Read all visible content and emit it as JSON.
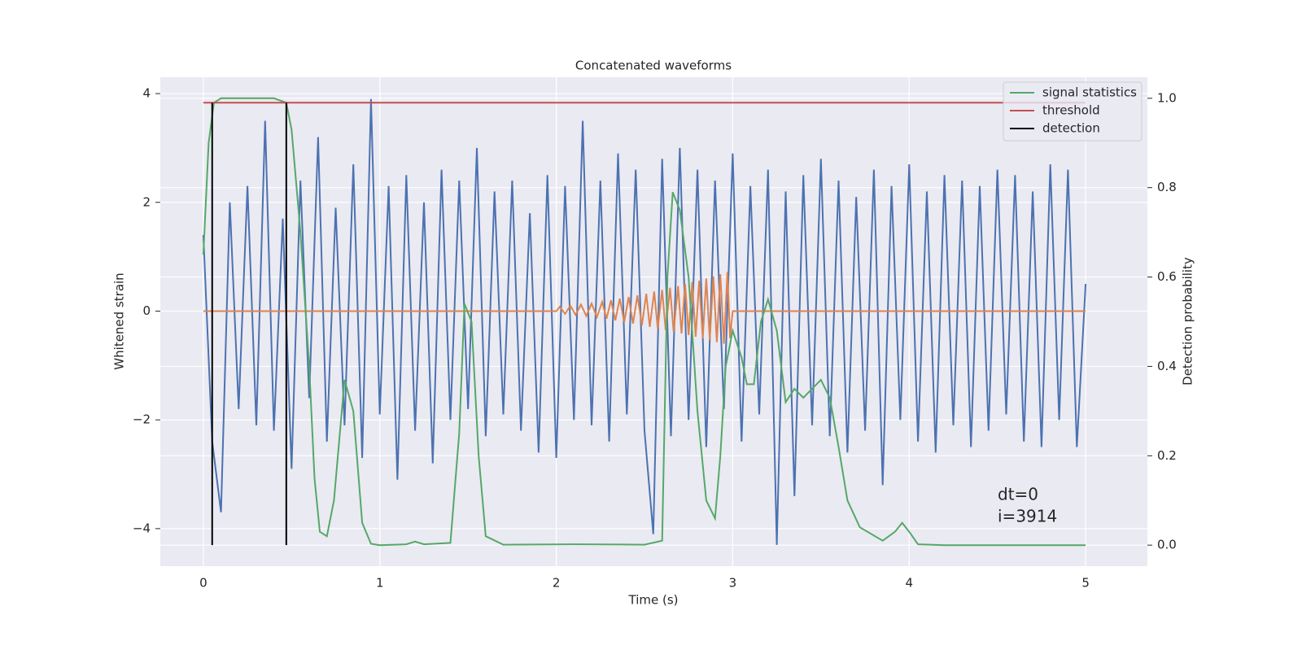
{
  "chart_data": {
    "type": "line",
    "title": "Concatenated waveforms",
    "x_label": "Time (s)",
    "y_label": "Whitened strain",
    "y2_label": "Detection probability",
    "xlim": [
      -0.244,
      5.35
    ],
    "ylim": [
      -4.69,
      4.3
    ],
    "y2lim": [
      -0.047,
      1.047
    ],
    "xticks": [
      0,
      1,
      2,
      3,
      4,
      5
    ],
    "yticks": [
      {
        "value": -4,
        "label": "−4"
      },
      {
        "value": -2,
        "label": "−2"
      },
      0,
      2,
      4
    ],
    "y2ticks": [
      {
        "value": 0,
        "label": "0.0"
      },
      {
        "value": 0.2,
        "label": "0.2"
      },
      {
        "value": 0.4,
        "label": "0.4"
      },
      {
        "value": 0.6,
        "label": "0.6"
      },
      {
        "value": 0.8,
        "label": "0.8"
      },
      {
        "value": 1,
        "label": "1.0"
      }
    ],
    "grid": true,
    "legend": "upper right",
    "annotations": [
      "dt=0",
      "i=3914"
    ],
    "series": [
      {
        "color": "#4c72b0",
        "axis": "y",
        "x": [
          0,
          0.05,
          0.1,
          0.15,
          0.2,
          0.25,
          0.3,
          0.35,
          0.4,
          0.45,
          0.5,
          0.55,
          0.6,
          0.65,
          0.7,
          0.75,
          0.8,
          0.85,
          0.9,
          0.95,
          1,
          1.05,
          1.1,
          1.15,
          1.2,
          1.25,
          1.3,
          1.35,
          1.4,
          1.45,
          1.5,
          1.55,
          1.6,
          1.65,
          1.7,
          1.75,
          1.8,
          1.85,
          1.9,
          1.95,
          2,
          2.05,
          2.1,
          2.15,
          2.2,
          2.25,
          2.3,
          2.35,
          2.4,
          2.45,
          2.5,
          2.55,
          2.6,
          2.65,
          2.7,
          2.75,
          2.8,
          2.85,
          2.9,
          2.95,
          3,
          3.05,
          3.1,
          3.15,
          3.2,
          3.25,
          3.3,
          3.35,
          3.4,
          3.45,
          3.5,
          3.55,
          3.6,
          3.65,
          3.7,
          3.75,
          3.8,
          3.85,
          3.9,
          3.95,
          4,
          4.05,
          4.1,
          4.15,
          4.2,
          4.25,
          4.3,
          4.35,
          4.4,
          4.45,
          4.5,
          4.55,
          4.6,
          4.65,
          4.7,
          4.75,
          4.8,
          4.85,
          4.9,
          4.95,
          5
        ],
        "values": [
          1.4,
          -2.4,
          -3.7,
          2.0,
          -1.8,
          2.3,
          -2.1,
          3.5,
          -2.2,
          1.7,
          -2.9,
          2.4,
          -1.6,
          3.2,
          -2.4,
          1.9,
          -2.1,
          2.7,
          -2.7,
          3.9,
          -1.9,
          2.3,
          -3.1,
          2.5,
          -2.2,
          2.0,
          -2.8,
          2.6,
          -2.0,
          2.4,
          -1.8,
          3.0,
          -2.3,
          2.2,
          -1.9,
          2.4,
          -2.2,
          1.8,
          -2.6,
          2.5,
          -2.7,
          2.3,
          -2.0,
          3.5,
          -2.1,
          2.4,
          -2.4,
          2.9,
          -1.9,
          2.6,
          -2.2,
          -4.1,
          2.8,
          -2.3,
          3.0,
          -2.0,
          2.6,
          -2.5,
          2.4,
          -1.8,
          2.9,
          -2.4,
          2.3,
          -1.9,
          2.6,
          -4.3,
          2.2,
          -3.4,
          2.5,
          -2.1,
          2.8,
          -2.3,
          2.4,
          -2.6,
          2.1,
          -2.2,
          2.6,
          -3.2,
          2.3,
          -2.0,
          2.7,
          -2.4,
          2.2,
          -2.6,
          2.5,
          -2.1,
          2.4,
          -2.5,
          2.3,
          -2.2,
          2.6,
          -1.9,
          2.5,
          -2.4,
          2.2,
          -2.5,
          2.7,
          -2.0,
          2.6,
          -2.5,
          0.5
        ]
      },
      {
        "color": "#dd8452",
        "axis": "y",
        "x": [
          0,
          2,
          2.02,
          2.05,
          2.08,
          2.11,
          2.14,
          2.17,
          2.2,
          2.23,
          2.26,
          2.285,
          2.31,
          2.335,
          2.36,
          2.385,
          2.41,
          2.435,
          2.46,
          2.485,
          2.51,
          2.53,
          2.555,
          2.575,
          2.6,
          2.62,
          2.645,
          2.665,
          2.69,
          2.71,
          2.73,
          2.75,
          2.77,
          2.79,
          2.81,
          2.83,
          2.85,
          2.87,
          2.89,
          2.91,
          2.93,
          2.95,
          2.97,
          2.985,
          3,
          5
        ],
        "values": [
          0,
          0,
          0.08,
          -0.05,
          0.1,
          -0.07,
          0.12,
          -0.09,
          0.14,
          -0.11,
          0.17,
          -0.14,
          0.2,
          -0.17,
          0.23,
          -0.2,
          0.26,
          -0.23,
          0.29,
          -0.26,
          0.32,
          -0.29,
          0.36,
          -0.32,
          0.39,
          -0.35,
          0.43,
          -0.38,
          0.46,
          -0.41,
          0.5,
          -0.44,
          0.53,
          -0.47,
          0.56,
          -0.5,
          0.6,
          -0.53,
          0.64,
          -0.57,
          0.68,
          -0.6,
          0.72,
          -0.5,
          0,
          0
        ]
      },
      {
        "name": "signal statistics",
        "color": "#55a868",
        "axis": "y2",
        "x": [
          0,
          0.03,
          0.06,
          0.1,
          0.4,
          0.47,
          0.5,
          0.55,
          0.6,
          0.63,
          0.66,
          0.7,
          0.74,
          0.8,
          0.85,
          0.9,
          0.95,
          1,
          1.15,
          1.2,
          1.25,
          1.4,
          1.45,
          1.48,
          1.52,
          1.56,
          1.6,
          1.7,
          2.1,
          2.5,
          2.6,
          2.63,
          2.66,
          2.7,
          2.75,
          2.8,
          2.85,
          2.9,
          2.93,
          2.96,
          3,
          3.05,
          3.08,
          3.12,
          3.16,
          3.2,
          3.25,
          3.3,
          3.35,
          3.4,
          3.45,
          3.5,
          3.55,
          3.6,
          3.65,
          3.72,
          3.85,
          3.92,
          3.96,
          4,
          4.05,
          4.2,
          5
        ],
        "values": [
          0.65,
          0.9,
          0.99,
          1,
          1,
          0.99,
          0.93,
          0.7,
          0.4,
          0.15,
          0.03,
          0.02,
          0.1,
          0.37,
          0.3,
          0.05,
          0.003,
          0,
          0.002,
          0.008,
          0.002,
          0.005,
          0.25,
          0.54,
          0.5,
          0.2,
          0.02,
          0.001,
          0.002,
          0.001,
          0.01,
          0.6,
          0.79,
          0.75,
          0.6,
          0.3,
          0.1,
          0.06,
          0.2,
          0.4,
          0.48,
          0.42,
          0.36,
          0.36,
          0.5,
          0.55,
          0.48,
          0.32,
          0.35,
          0.33,
          0.35,
          0.37,
          0.33,
          0.22,
          0.1,
          0.04,
          0.01,
          0.03,
          0.05,
          0.03,
          0.002,
          0,
          0
        ]
      },
      {
        "name": "threshold",
        "color": "#c44e52",
        "axis": "y2",
        "x": [
          0,
          5
        ],
        "values": [
          0.99,
          0.99
        ]
      },
      {
        "name": "detection",
        "color": "#000000",
        "axis": "y2",
        "x": [
          0.05,
          0.47
        ]
      }
    ]
  }
}
